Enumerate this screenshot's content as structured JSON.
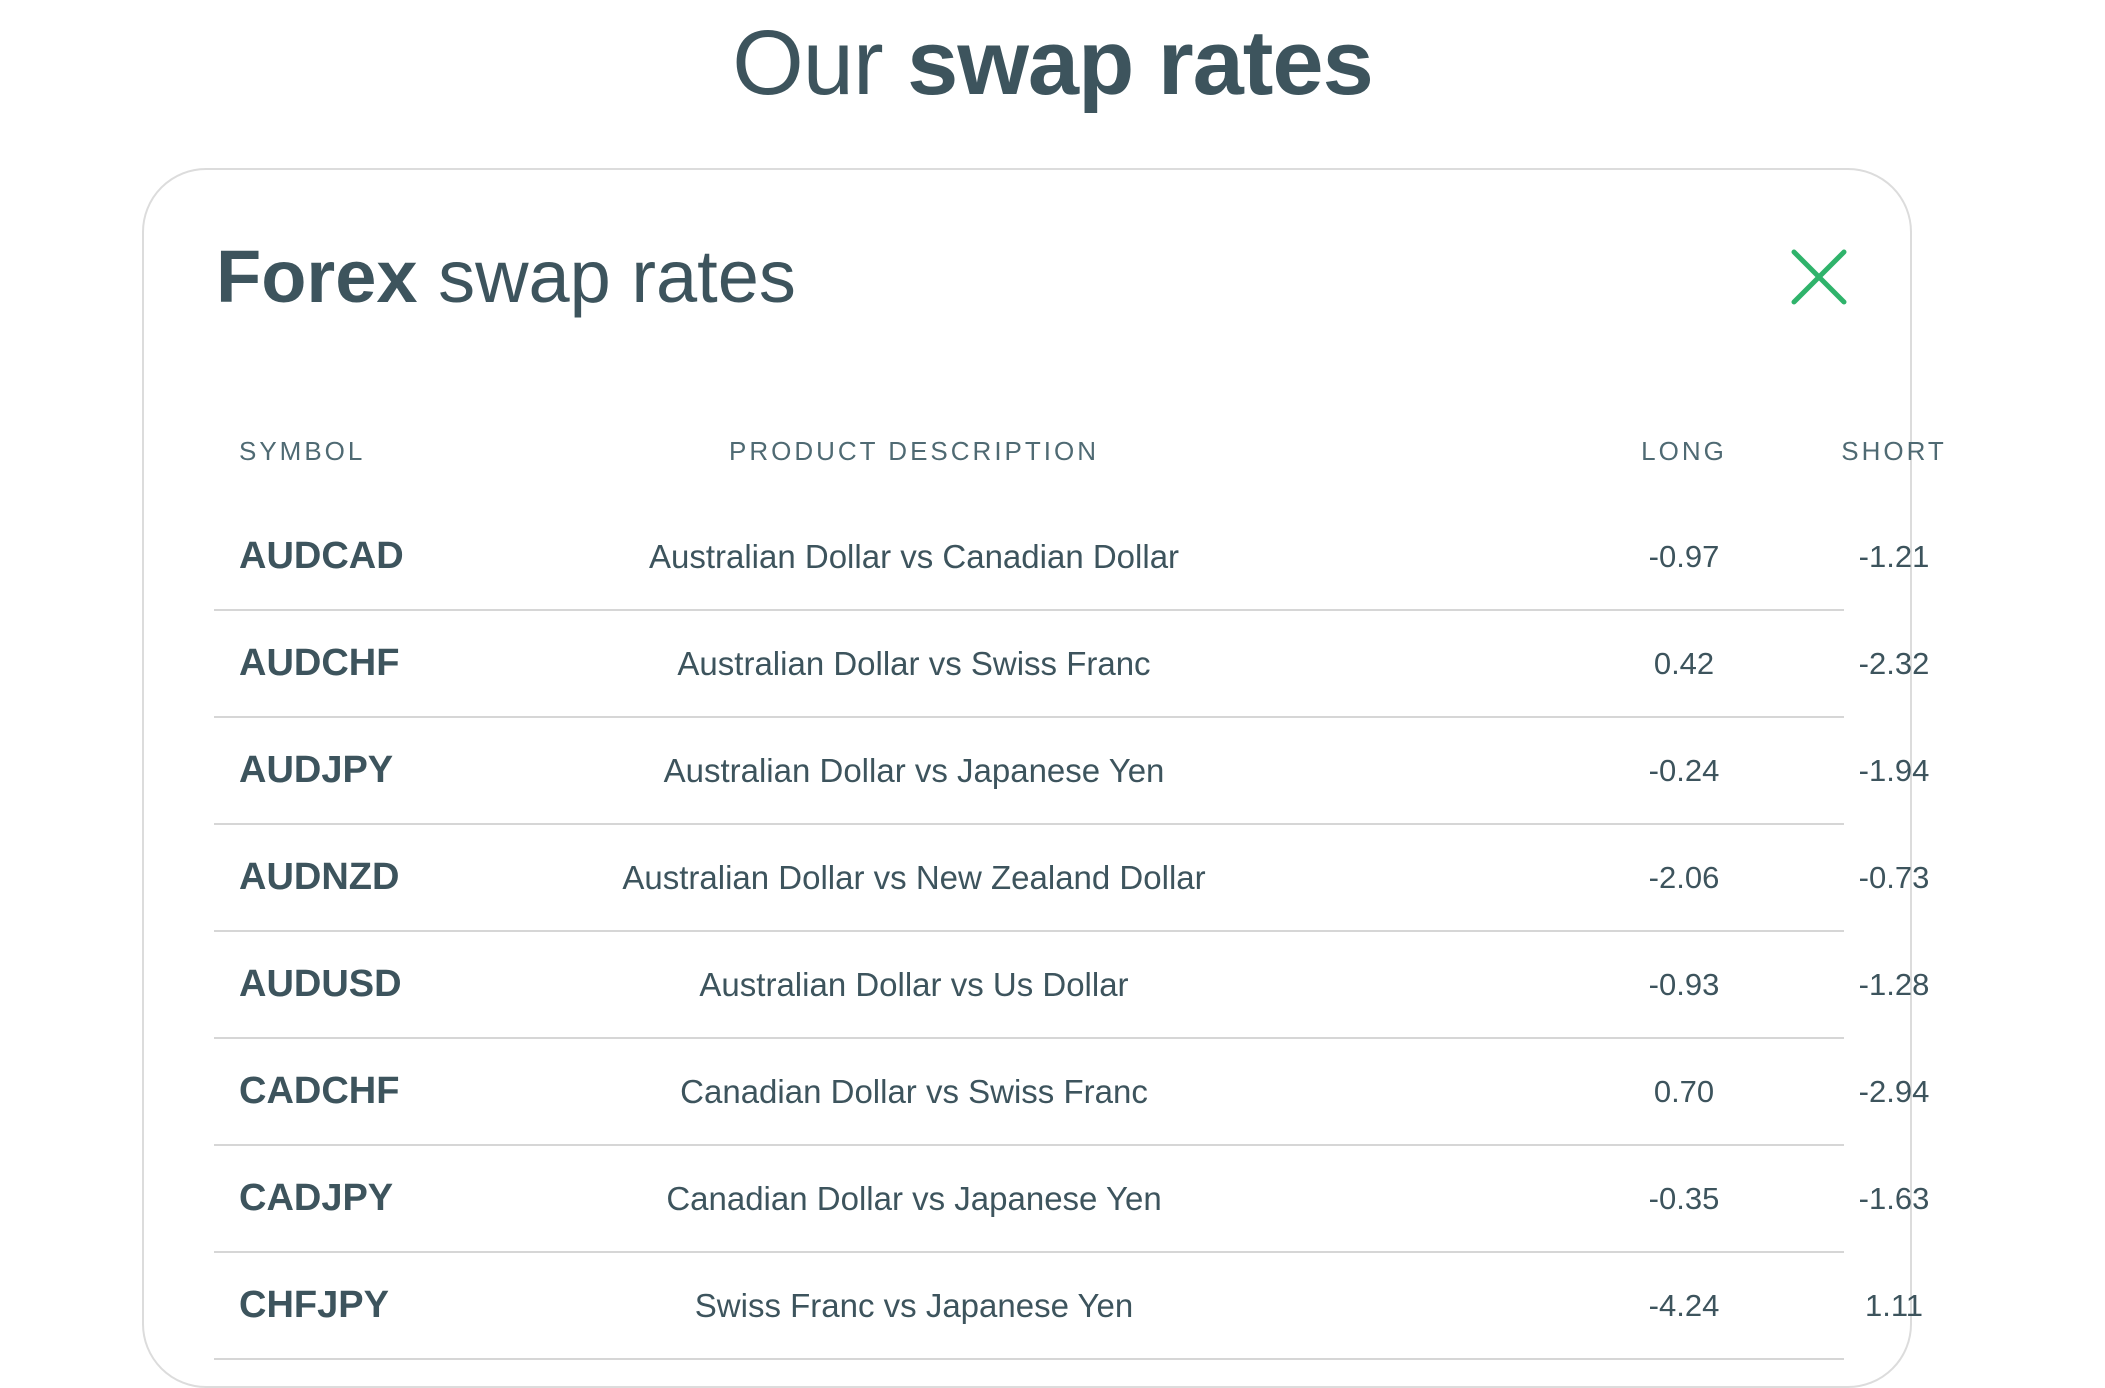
{
  "page": {
    "title_regular": "Our",
    "title_bold": "swap rates"
  },
  "card": {
    "title_bold": "Forex",
    "title_regular": "swap rates",
    "close_icon": "close-icon",
    "accent_color": "#2fb36b"
  },
  "table": {
    "headers": {
      "symbol": "SYMBOL",
      "description": "PRODUCT DESCRIPTION",
      "long": "LONG",
      "short": "SHORT"
    },
    "rows": [
      {
        "symbol": "AUDCAD",
        "description": "Australian Dollar vs Canadian Dollar",
        "long": "-0.97",
        "short": "-1.21"
      },
      {
        "symbol": "AUDCHF",
        "description": "Australian Dollar vs Swiss Franc",
        "long": "0.42",
        "short": "-2.32"
      },
      {
        "symbol": "AUDJPY",
        "description": "Australian Dollar vs Japanese Yen",
        "long": "-0.24",
        "short": "-1.94"
      },
      {
        "symbol": "AUDNZD",
        "description": "Australian Dollar vs New Zealand Dollar",
        "long": "-2.06",
        "short": "-0.73"
      },
      {
        "symbol": "AUDUSD",
        "description": "Australian Dollar vs Us Dollar",
        "long": "-0.93",
        "short": "-1.28"
      },
      {
        "symbol": "CADCHF",
        "description": "Canadian Dollar vs Swiss Franc",
        "long": "0.70",
        "short": "-2.94"
      },
      {
        "symbol": "CADJPY",
        "description": "Canadian Dollar vs Japanese Yen",
        "long": "-0.35",
        "short": "-1.63"
      },
      {
        "symbol": "CHFJPY",
        "description": "Swiss Franc vs Japanese Yen",
        "long": "-4.24",
        "short": "1.11"
      }
    ]
  }
}
